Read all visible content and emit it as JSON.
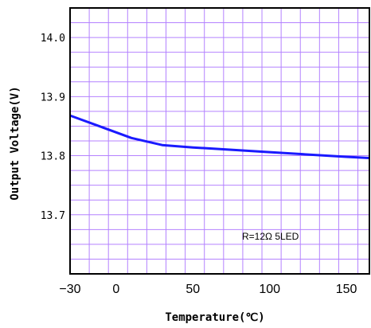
{
  "chart_data": {
    "type": "line",
    "title": "",
    "xlabel": "Temperature(℃)",
    "ylabel": "Output Voltage(V)",
    "xlim": [
      -30,
      165
    ],
    "ylim": [
      13.6,
      14.05
    ],
    "x_ticks": [
      -30,
      0,
      50,
      100,
      150
    ],
    "x_tick_labels": [
      "−30",
      "0",
      "50",
      "100",
      "150"
    ],
    "y_ticks": [
      13.7,
      13.8,
      13.9,
      14.0
    ],
    "y_tick_labels": [
      "13.7",
      "13.8",
      "13.9",
      "14.0"
    ],
    "grid": true,
    "grid_color": "#b482ff",
    "series": [
      {
        "color": "#1a1aff",
        "x": [
          -30,
          -10,
          10,
          30,
          50,
          75,
          100,
          125,
          150,
          165
        ],
        "y": [
          13.868,
          13.849,
          13.83,
          13.818,
          13.814,
          13.81,
          13.806,
          13.802,
          13.798,
          13.796
        ]
      }
    ],
    "annotation": "R=12Ω  5LED"
  }
}
